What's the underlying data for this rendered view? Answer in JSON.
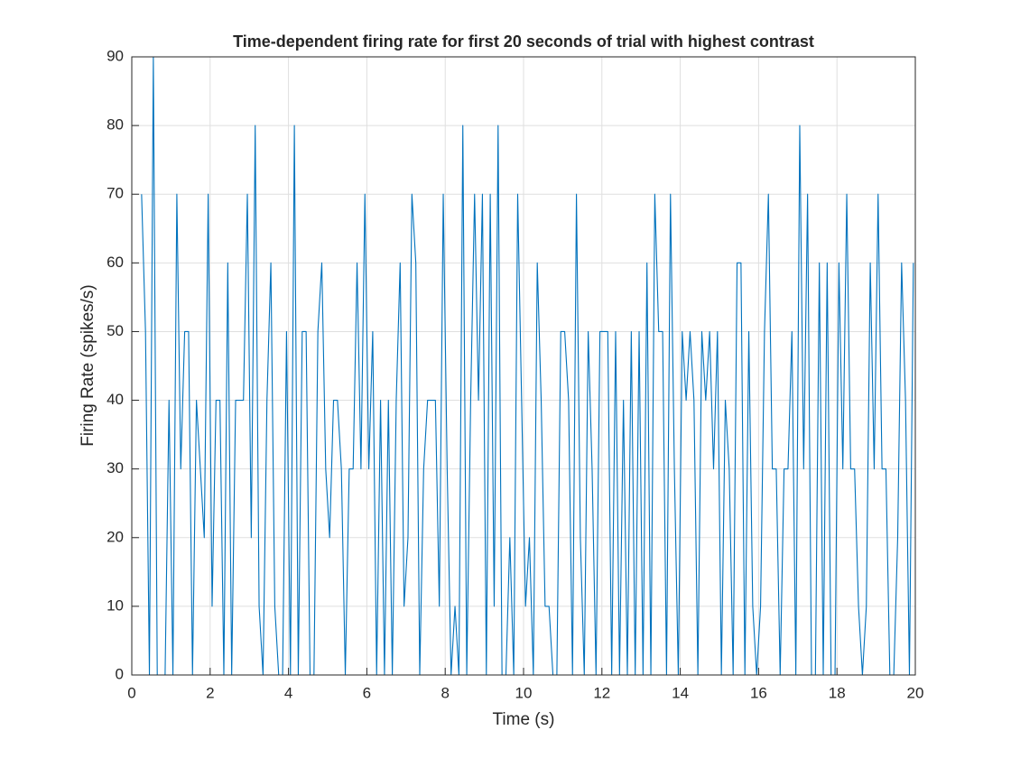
{
  "chart_data": {
    "type": "line",
    "title": "Time-dependent firing rate for first 20 seconds of trial with highest contrast",
    "xlabel": "Time (s)",
    "ylabel": "Firing Rate (spikes/s)",
    "color": "#0072bd",
    "grid": true,
    "xlim": [
      0,
      20
    ],
    "xticks": [
      0,
      2,
      4,
      6,
      8,
      10,
      12,
      14,
      16,
      18,
      20
    ],
    "ylim": [
      0,
      90
    ],
    "yticks": [
      0,
      10,
      20,
      30,
      40,
      50,
      60,
      70,
      80,
      90
    ],
    "x": [
      0.25,
      0.35,
      0.45,
      0.55,
      0.65,
      0.75,
      0.85,
      0.95,
      1.05,
      1.15,
      1.25,
      1.35,
      1.45,
      1.55,
      1.65,
      1.75,
      1.85,
      1.95,
      2.05,
      2.15,
      2.25,
      2.35,
      2.45,
      2.55,
      2.65,
      2.75,
      2.85,
      2.95,
      3.05,
      3.15,
      3.25,
      3.35,
      3.45,
      3.55,
      3.65,
      3.75,
      3.85,
      3.95,
      4.05,
      4.15,
      4.25,
      4.35,
      4.45,
      4.55,
      4.65,
      4.75,
      4.85,
      4.95,
      5.05,
      5.15,
      5.25,
      5.35,
      5.45,
      5.55,
      5.65,
      5.75,
      5.85,
      5.95,
      6.05,
      6.15,
      6.25,
      6.35,
      6.45,
      6.55,
      6.65,
      6.75,
      6.85,
      6.95,
      7.05,
      7.15,
      7.25,
      7.35,
      7.45,
      7.55,
      7.65,
      7.75,
      7.85,
      7.95,
      8.05,
      8.15,
      8.25,
      8.35,
      8.45,
      8.55,
      8.65,
      8.75,
      8.85,
      8.95,
      9.05,
      9.15,
      9.25,
      9.35,
      9.45,
      9.55,
      9.65,
      9.75,
      9.85,
      9.95,
      10.05,
      10.15,
      10.25,
      10.35,
      10.45,
      10.55,
      10.65,
      10.75,
      10.85,
      10.95,
      11.05,
      11.15,
      11.25,
      11.35,
      11.45,
      11.55,
      11.65,
      11.75,
      11.85,
      11.95,
      12.05,
      12.15,
      12.25,
      12.35,
      12.45,
      12.55,
      12.65,
      12.75,
      12.85,
      12.95,
      13.05,
      13.15,
      13.25,
      13.35,
      13.45,
      13.55,
      13.65,
      13.75,
      13.85,
      13.95,
      14.05,
      14.15,
      14.25,
      14.35,
      14.45,
      14.55,
      14.65,
      14.75,
      14.85,
      14.95,
      15.05,
      15.15,
      15.25,
      15.35,
      15.45,
      15.55,
      15.65,
      15.75,
      15.85,
      15.95,
      16.05,
      16.15,
      16.25,
      16.35,
      16.45,
      16.55,
      16.65,
      16.75,
      16.85,
      16.95,
      17.05,
      17.15,
      17.25,
      17.35,
      17.45,
      17.55,
      17.65,
      17.75,
      17.85,
      17.95,
      18.05,
      18.15,
      18.25,
      18.35,
      18.45,
      18.55,
      18.65,
      18.75,
      18.85,
      18.95,
      19.05,
      19.15,
      19.25,
      19.35,
      19.45,
      19.55,
      19.65,
      19.75,
      19.85,
      19.95
    ],
    "values": [
      70,
      50,
      0,
      90,
      0,
      0,
      0,
      40,
      0,
      70,
      30,
      50,
      50,
      0,
      40,
      30,
      20,
      70,
      10,
      40,
      40,
      0,
      60,
      0,
      40,
      40,
      40,
      70,
      20,
      80,
      10,
      0,
      40,
      60,
      10,
      0,
      0,
      50,
      0,
      80,
      0,
      50,
      50,
      0,
      0,
      50,
      60,
      30,
      20,
      40,
      40,
      30,
      0,
      30,
      30,
      60,
      30,
      70,
      30,
      50,
      0,
      40,
      0,
      40,
      0,
      40,
      60,
      10,
      20,
      70,
      60,
      0,
      30,
      40,
      40,
      40,
      10,
      70,
      30,
      0,
      10,
      0,
      80,
      0,
      40,
      70,
      40,
      70,
      0,
      70,
      10,
      80,
      0,
      0,
      20,
      0,
      70,
      40,
      10,
      20,
      0,
      60,
      40,
      10,
      10,
      0,
      0,
      50,
      50,
      40,
      0,
      70,
      20,
      0,
      50,
      30,
      0,
      50,
      50,
      50,
      0,
      50,
      0,
      40,
      0,
      50,
      0,
      50,
      0,
      60,
      0,
      70,
      50,
      50,
      0,
      70,
      30,
      0,
      50,
      40,
      50,
      40,
      0,
      50,
      40,
      50,
      30,
      50,
      0,
      40,
      30,
      0,
      60,
      60,
      0,
      50,
      10,
      0,
      10,
      50,
      70,
      30,
      30,
      0,
      30,
      30,
      50,
      0,
      80,
      30,
      70,
      0,
      0,
      60,
      0,
      60,
      0,
      0,
      60,
      30,
      70,
      30,
      30,
      10,
      0,
      10,
      60,
      30,
      70,
      30,
      30,
      0,
      0,
      20,
      60,
      40,
      0,
      60
    ]
  }
}
